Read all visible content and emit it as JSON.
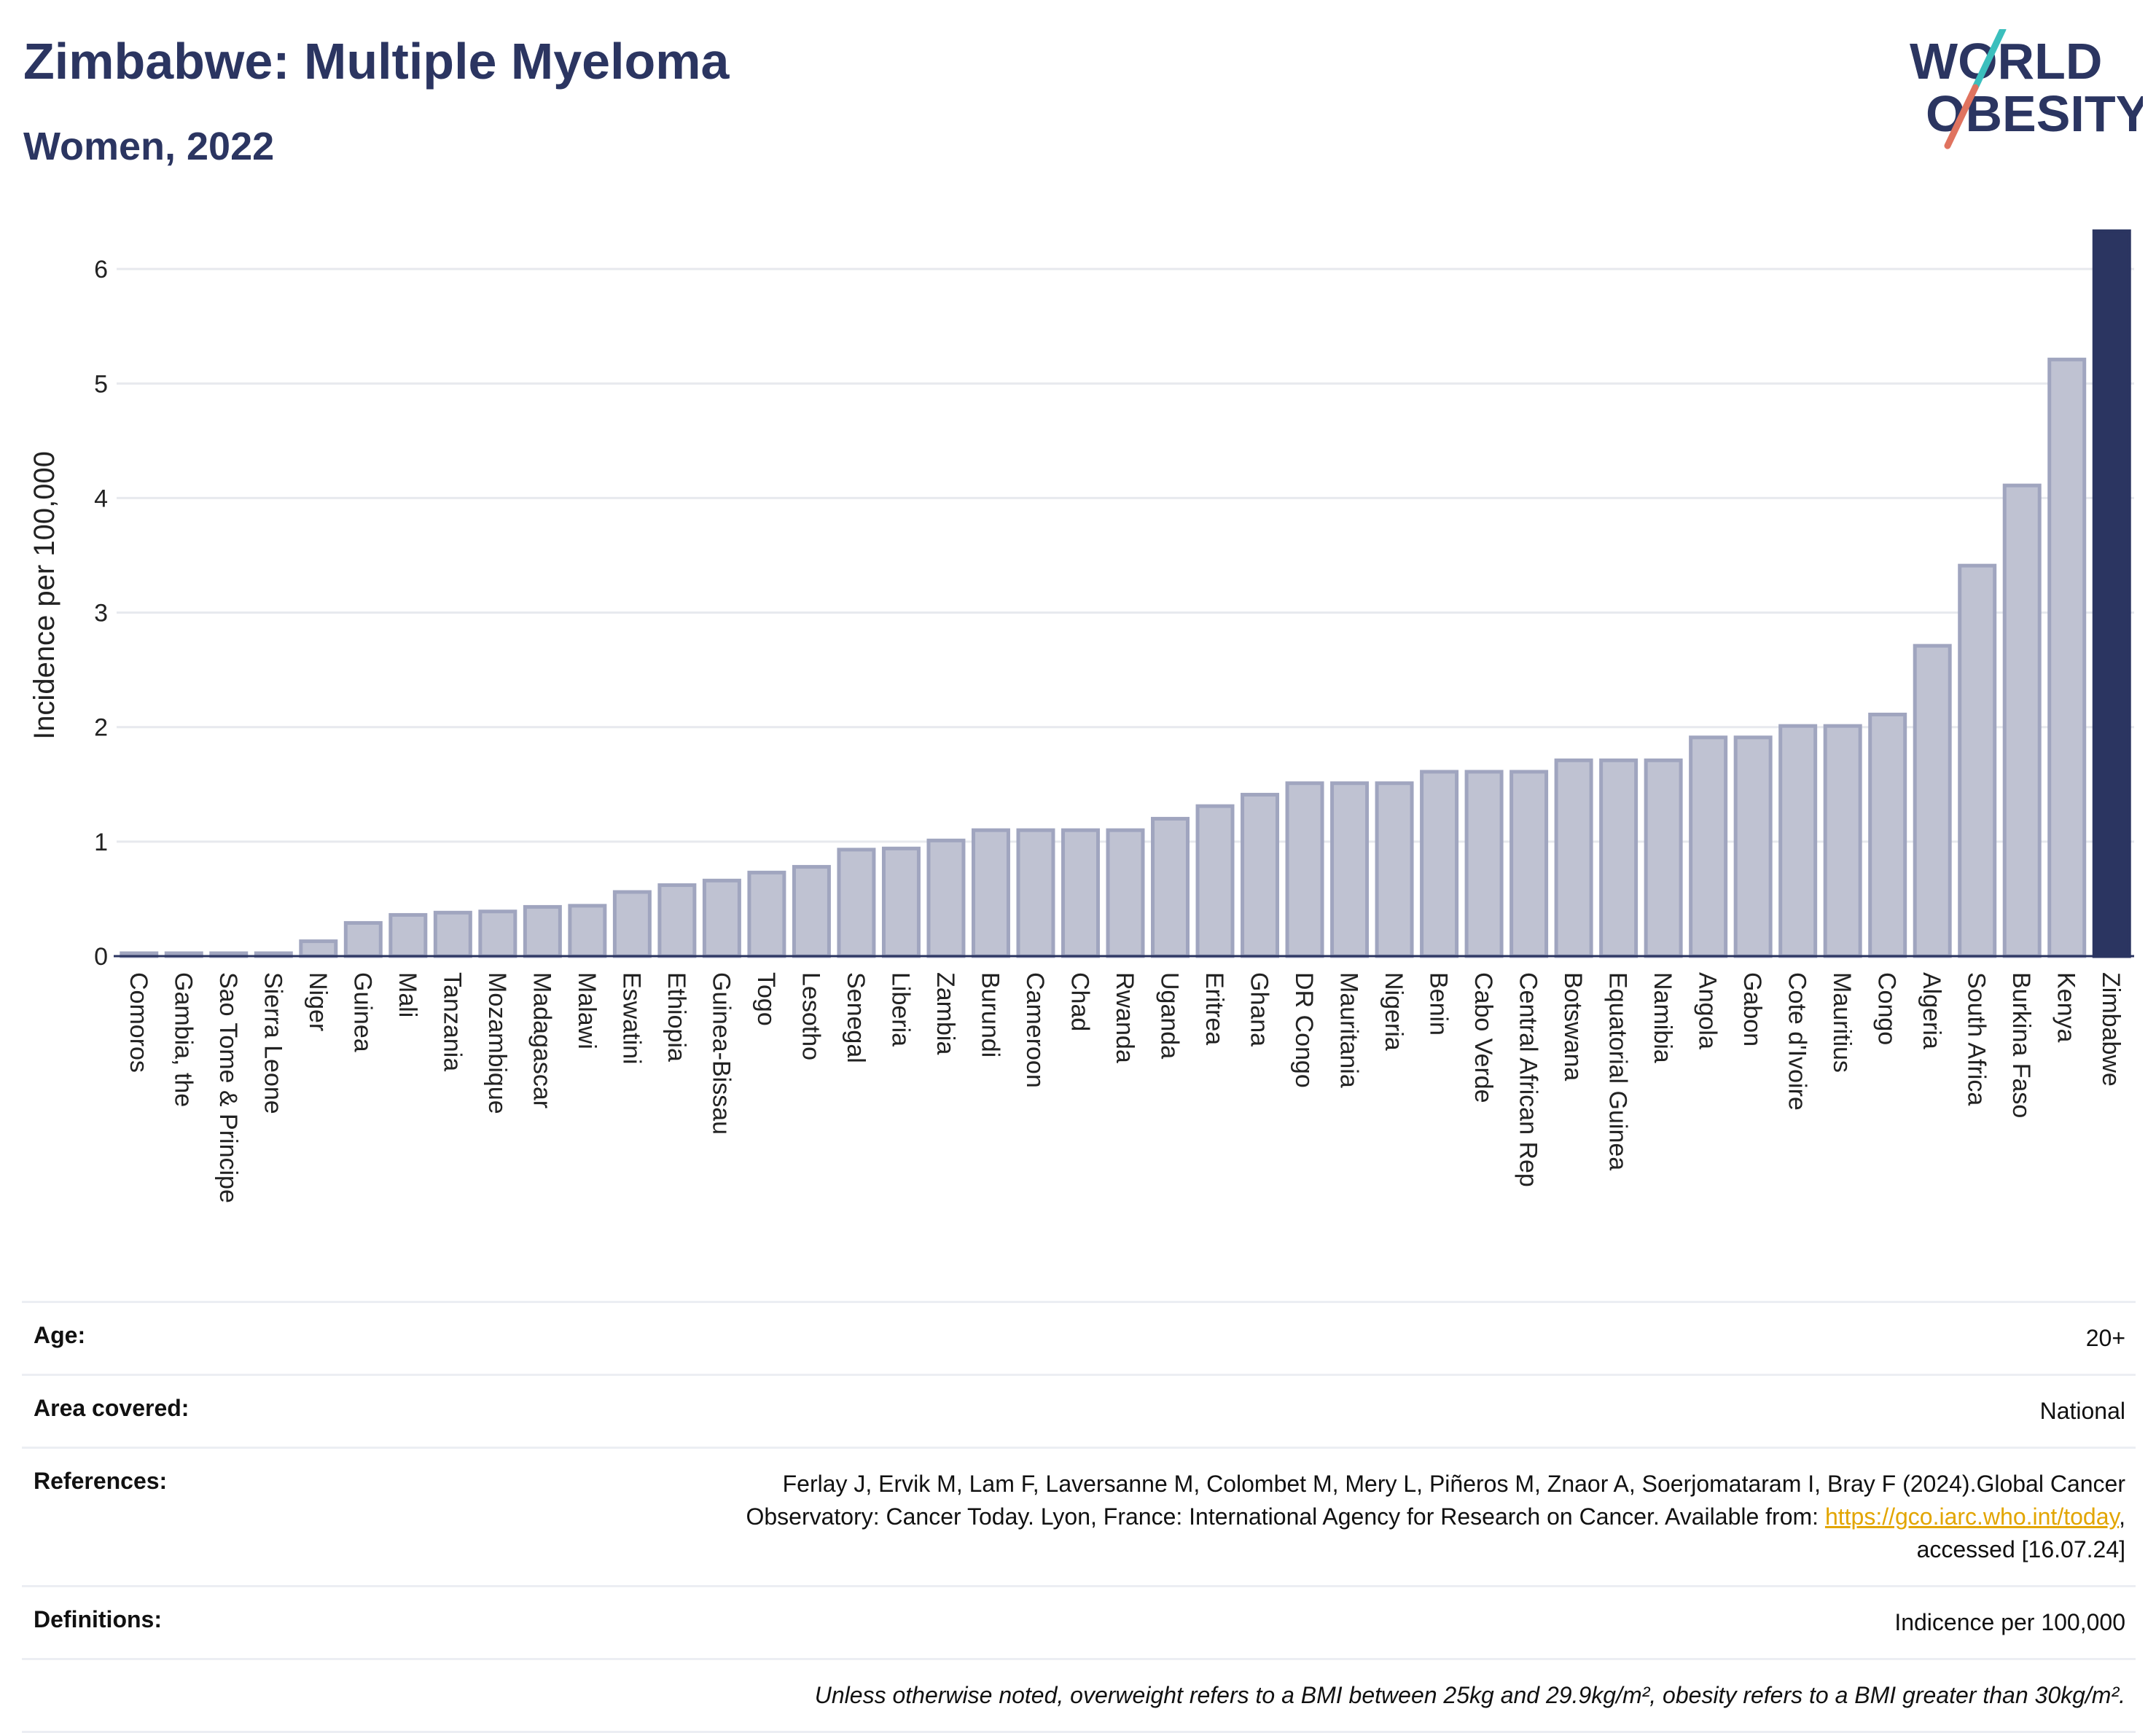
{
  "header": {
    "title": "Zimbabwe: Multiple Myeloma",
    "subtitle": "Women, 2022",
    "logo_line1": "WORLD",
    "logo_line2": "OBESITY"
  },
  "colors": {
    "bar": "#bfc2d2",
    "bar_stroke": "#a0a5bf",
    "highlight": "#2b3561",
    "title": "#2b3561",
    "logo_teal": "#3bbfbd",
    "logo_coral": "#e0735f",
    "link": "#e2a500"
  },
  "chart_data": {
    "type": "bar",
    "ylabel": "Incidence per 100,000",
    "ylim": [
      0,
      6.3
    ],
    "yticks": [
      0,
      1,
      2,
      3,
      4,
      5,
      6
    ],
    "grid": true,
    "highlight_category": "Zimbabwe",
    "categories": [
      "Comoros",
      "Gambia, the",
      "Sao Tome & Principe",
      "Sierra Leone",
      "Niger",
      "Guinea",
      "Mali",
      "Tanzania",
      "Mozambique",
      "Madagascar",
      "Malawi",
      "Eswatini",
      "Ethiopia",
      "Guinea-Bissau",
      "Togo",
      "Lesotho",
      "Senegal",
      "Liberia",
      "Zambia",
      "Burundi",
      "Cameroon",
      "Chad",
      "Rwanda",
      "Uganda",
      "Eritrea",
      "Ghana",
      "DR Congo",
      "Mauritania",
      "Nigeria",
      "Benin",
      "Cabo Verde",
      "Central African Rep",
      "Botswana",
      "Equatorial Guinea",
      "Namibia",
      "Angola",
      "Gabon",
      "Cote d'Ivoire",
      "Mauritius",
      "Congo",
      "Algeria",
      "South Africa",
      "Burkina Faso",
      "Kenya",
      "Zimbabwe"
    ],
    "values": [
      0.02,
      0.02,
      0.02,
      0.02,
      0.13,
      0.29,
      0.36,
      0.38,
      0.39,
      0.43,
      0.44,
      0.56,
      0.62,
      0.66,
      0.73,
      0.78,
      0.93,
      0.94,
      1.01,
      1.1,
      1.1,
      1.1,
      1.1,
      1.2,
      1.31,
      1.41,
      1.51,
      1.51,
      1.51,
      1.61,
      1.61,
      1.61,
      1.71,
      1.71,
      1.71,
      1.91,
      1.91,
      2.01,
      2.01,
      2.11,
      2.71,
      3.41,
      4.11,
      5.21,
      6.33
    ]
  },
  "info": {
    "age_label": "Age:",
    "age_value": "20+",
    "area_label": "Area covered:",
    "area_value": "National",
    "references_label": "References:",
    "references_text1": "Ferlay J, Ervik M, Lam F, Laversanne M, Colombet M, Mery L, Piñeros M, Znaor A, Soerjomataram I, Bray F (2024).Global Cancer",
    "references_text2": "Observatory: Cancer Today. Lyon, France: International Agency for Research on Cancer. Available from: ",
    "references_link": "https://gco.iarc.who.int/today",
    "references_text3": ",",
    "references_text4": "accessed [16.07.24]",
    "definitions_label": "Definitions:",
    "definitions_value": "Indicence per 100,000",
    "note": "Unless otherwise noted, overweight refers to a BMI between 25kg and 29.9kg/m², obesity refers to a BMI greater than 30kg/m²."
  }
}
